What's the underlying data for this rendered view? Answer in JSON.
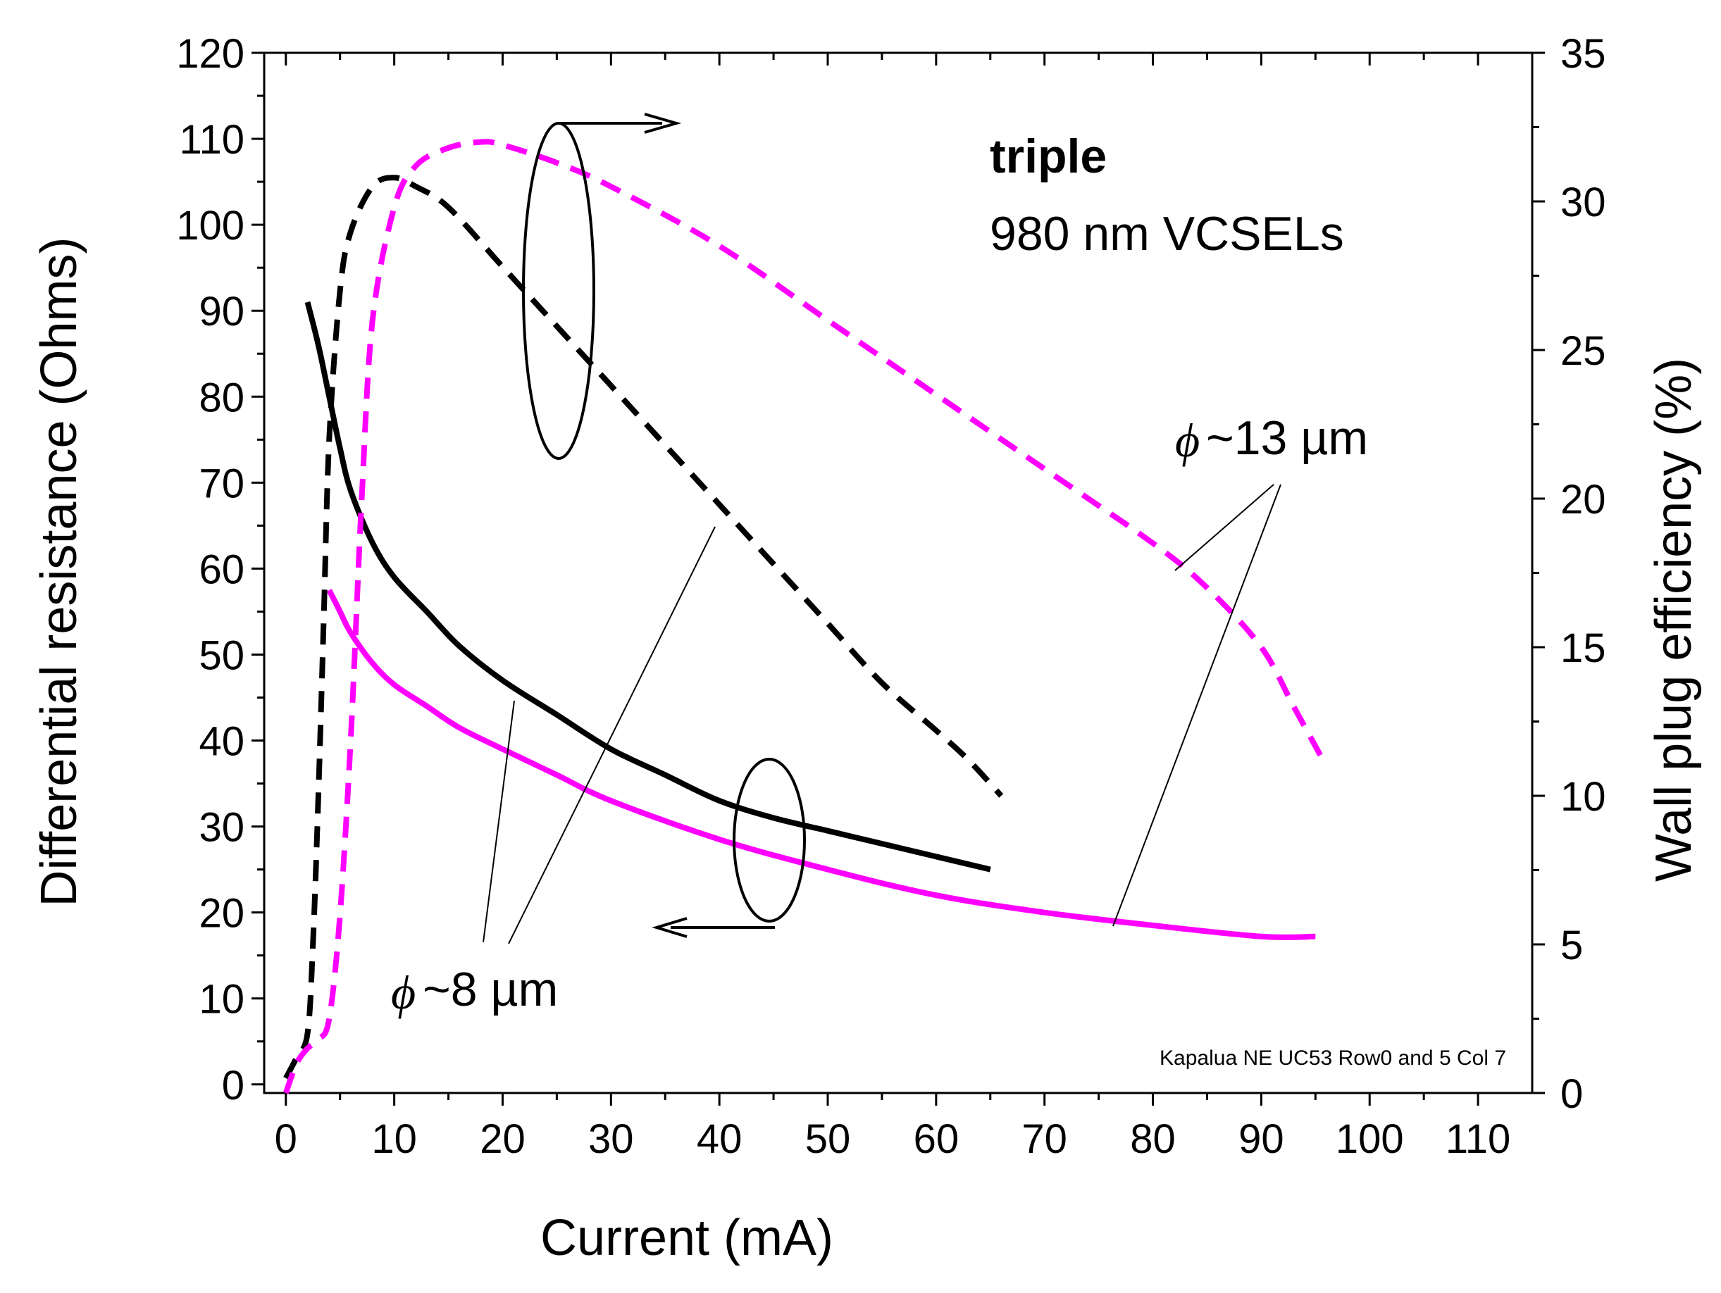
{
  "chart_data": {
    "type": "line",
    "title": "",
    "xlabel": "Current (mA)",
    "ylabel_left": "Differential resistance (Ohms)",
    "ylabel_right": "Wall plug efficiency (%)",
    "xlim": [
      -2,
      115
    ],
    "ylim_left": [
      -1,
      120
    ],
    "ylim_right": [
      0,
      35
    ],
    "x_ticks": [
      "0",
      "10",
      "20",
      "30",
      "40",
      "50",
      "60",
      "70",
      "80",
      "90",
      "100",
      "110"
    ],
    "y_left_ticks": [
      "0",
      "10",
      "20",
      "30",
      "40",
      "50",
      "60",
      "70",
      "80",
      "90",
      "100",
      "110",
      "120"
    ],
    "y_right_ticks": [
      "0",
      "5",
      "10",
      "15",
      "20",
      "25",
      "30",
      "35"
    ],
    "series": [
      {
        "name": "Differential resistance, ~8 µm",
        "axis": "left",
        "style": "solid",
        "color": "#000000",
        "x": [
          2,
          3,
          4,
          5,
          6,
          8,
          10,
          13,
          16,
          20,
          25,
          30,
          35,
          40,
          45,
          50,
          55,
          60,
          65
        ],
        "y": [
          91,
          86,
          80,
          74,
          69,
          63,
          59,
          55,
          51,
          47,
          43,
          39,
          36,
          33,
          31,
          29.5,
          28,
          26.5,
          25
        ]
      },
      {
        "name": "Differential resistance, ~13 µm",
        "axis": "left",
        "style": "solid",
        "color": "#ff00ff",
        "x": [
          4,
          5,
          6,
          8,
          10,
          13,
          16,
          20,
          25,
          30,
          40,
          50,
          60,
          70,
          80,
          90,
          95
        ],
        "y": [
          57.5,
          55,
          52.5,
          49,
          46.5,
          44,
          41.5,
          39,
          36,
          33,
          28.5,
          25,
          22,
          20,
          18.5,
          17.2,
          17.2
        ]
      },
      {
        "name": "Wall plug efficiency, ~8 µm",
        "axis": "right",
        "style": "dashed",
        "color": "#000000",
        "x": [
          0,
          1,
          2,
          2.5,
          3,
          3.5,
          4,
          5,
          6,
          8,
          10,
          12,
          15,
          20,
          25,
          30,
          35,
          40,
          45,
          50,
          55,
          60,
          63,
          66
        ],
        "y": [
          0.5,
          1.2,
          2,
          5,
          10,
          16,
          22,
          27,
          29,
          30.5,
          30.8,
          30.5,
          29.8,
          27.8,
          25.8,
          23.8,
          21.8,
          19.8,
          17.8,
          15.8,
          13.8,
          12.2,
          11.2,
          10
        ]
      },
      {
        "name": "Wall plug efficiency, ~13 µm",
        "axis": "right",
        "style": "dashed",
        "color": "#ff00ff",
        "x": [
          0,
          1,
          2,
          3,
          4,
          5,
          6,
          7,
          8,
          10,
          12,
          15,
          18,
          20,
          25,
          30,
          40,
          50,
          60,
          70,
          80,
          85,
          90,
          93,
          96
        ],
        "y": [
          0,
          1,
          1.5,
          1.8,
          2.5,
          6,
          12,
          20,
          26,
          29.8,
          31.2,
          31.8,
          32,
          31.9,
          31.3,
          30.5,
          28.5,
          26,
          23.5,
          21,
          18.5,
          17,
          15,
          13,
          11
        ]
      }
    ],
    "annotations": {
      "device_type": "triple",
      "device_desc": "980 nm VCSELs",
      "phi_symbol": "ϕ",
      "label_13um": "~13 µm",
      "label_8um": "~8 µm",
      "credit": "Kapalua NE UC53 Row0 and 5 Col 7"
    }
  }
}
